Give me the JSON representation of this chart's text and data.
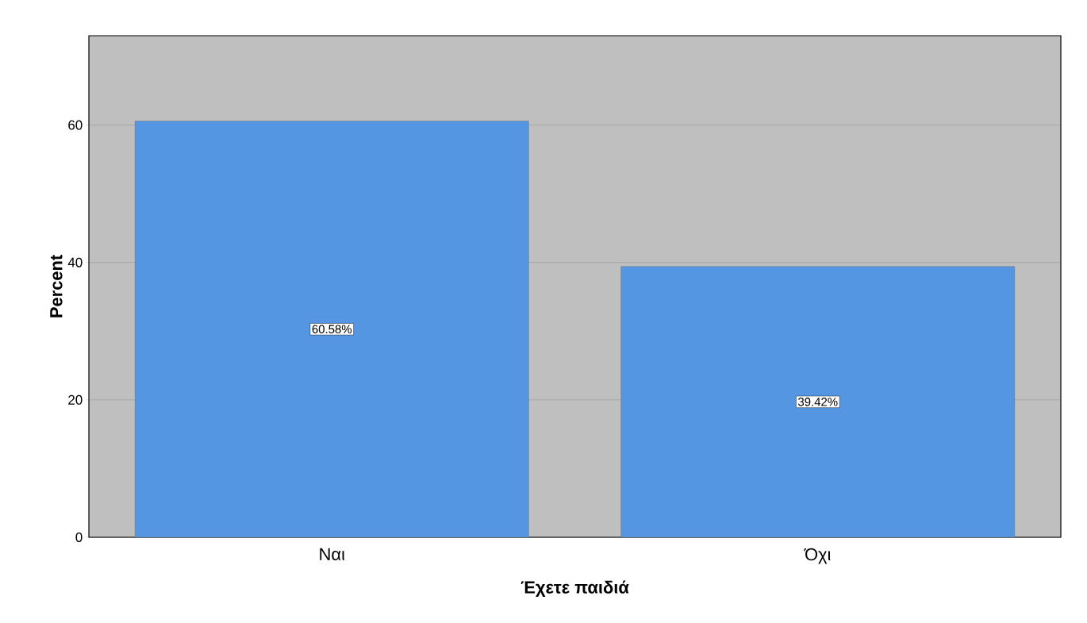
{
  "chart_data": {
    "type": "bar",
    "xlabel": "Έχετε παιδιά",
    "ylabel": "Percent",
    "categories": [
      "Ναι",
      "Όχι"
    ],
    "values": [
      60.58,
      39.42
    ],
    "value_labels": [
      "60.58%",
      "39.42%"
    ],
    "color": "#5596e3",
    "ylim": [
      0,
      73
    ],
    "yticks": [
      0,
      20,
      40,
      60
    ],
    "grid": "y"
  }
}
